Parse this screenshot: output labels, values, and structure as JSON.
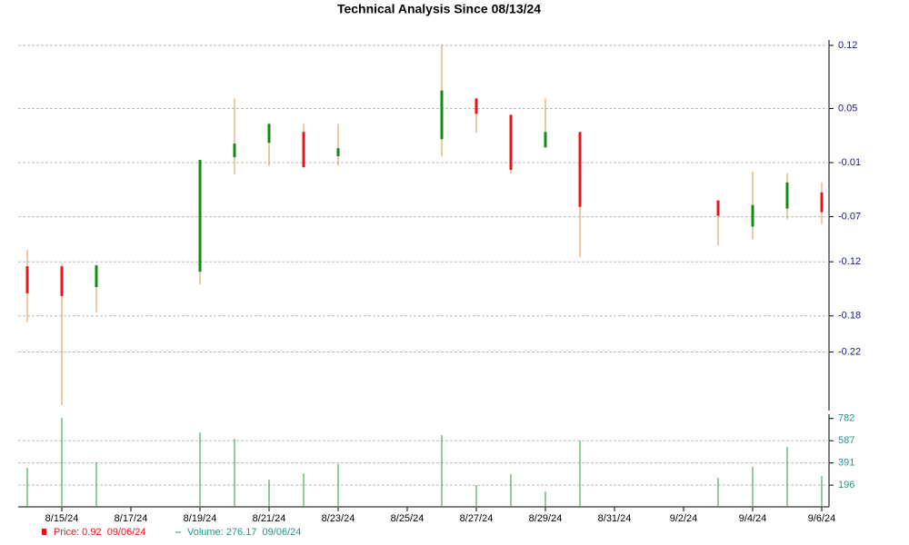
{
  "chart_data": {
    "type": "candlestick",
    "title": "Technical Analysis Since 08/13/24",
    "x": [
      "8/14/24",
      "8/15/24",
      "8/16/24",
      "8/19/24",
      "8/20/24",
      "8/21/24",
      "8/22/24",
      "8/23/24",
      "8/26/24",
      "8/27/24",
      "8/28/24",
      "8/29/24",
      "8/30/24",
      "9/3/24",
      "9/4/24",
      "9/5/24",
      "9/6/24"
    ],
    "open": [
      -0.125,
      -0.125,
      -0.148,
      -0.131,
      -0.004,
      0.012,
      0.024,
      -0.003,
      0.016,
      0.061,
      0.043,
      0.007,
      0.024,
      -0.052,
      -0.081,
      -0.061,
      -0.043
    ],
    "high": [
      -0.107,
      -0.122,
      -0.123,
      -0.007,
      0.061,
      0.033,
      0.033,
      0.033,
      0.121,
      0.062,
      0.043,
      0.061,
      0.024,
      -0.052,
      -0.02,
      -0.022,
      -0.032
    ],
    "low": [
      -0.187,
      -0.279,
      -0.176,
      -0.145,
      -0.023,
      -0.014,
      -0.016,
      -0.013,
      -0.003,
      0.023,
      -0.022,
      0.006,
      -0.115,
      -0.102,
      -0.095,
      -0.073,
      -0.078
    ],
    "close": [
      -0.155,
      -0.158,
      -0.124,
      -0.007,
      0.011,
      0.033,
      -0.015,
      0.006,
      0.07,
      0.044,
      -0.018,
      0.024,
      -0.059,
      -0.069,
      -0.057,
      -0.032,
      -0.065
    ],
    "volume": [
      348,
      787,
      396,
      659,
      603,
      244,
      300,
      380,
      635,
      196,
      292,
      140,
      587,
      260,
      356,
      531,
      276.17
    ],
    "up_color": "#138a13",
    "down_color": "#e8141c",
    "wick_color": "#d8944c",
    "volume_color": "#2a9a3a",
    "xlim": [
      "8/14/24",
      "9/6/24"
    ],
    "xticks": [
      "8/15/24",
      "8/17/24",
      "8/19/24",
      "8/21/24",
      "8/23/24",
      "8/25/24",
      "8/27/24",
      "8/29/24",
      "8/31/24",
      "9/2/24",
      "9/4/24",
      "9/6/24"
    ],
    "ylim": [
      -0.285,
      0.125
    ],
    "yticks": [
      0.12,
      0.05,
      -0.01,
      -0.07,
      -0.12,
      -0.18,
      -0.22
    ],
    "y2lim": [
      0,
      800
    ],
    "y2ticks": [
      782,
      587,
      391,
      196
    ],
    "grid": true,
    "legend_labels": [
      "Price: 0.92  09/06/24",
      "Volume: 276.17  09/06/24"
    ]
  }
}
